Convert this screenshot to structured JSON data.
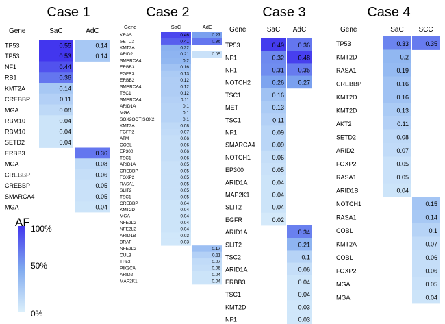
{
  "chart_data": {
    "type": "heatmap",
    "scale": {
      "label": "AF",
      "ticks": [
        "100%",
        "50%",
        "0%"
      ],
      "colors": {
        "high": "#4236ee",
        "mid": "#7fa9ef",
        "low": "#dbeffb"
      }
    },
    "panels": [
      {
        "title": "Case 1",
        "gene_header": "Gene",
        "columns": [
          "SaC",
          "AdC"
        ],
        "rows": [
          {
            "gene": "TP53",
            "values": [
              0.55,
              0.14
            ]
          },
          {
            "gene": "TP53",
            "values": [
              0.53,
              0.14
            ]
          },
          {
            "gene": "NF1",
            "values": [
              0.44,
              null
            ]
          },
          {
            "gene": "RB1",
            "values": [
              0.36,
              null
            ]
          },
          {
            "gene": "KMT2A",
            "values": [
              0.14,
              null
            ]
          },
          {
            "gene": "CREBBP",
            "values": [
              0.11,
              null
            ]
          },
          {
            "gene": "MGA",
            "values": [
              0.08,
              null
            ]
          },
          {
            "gene": "RBM10",
            "values": [
              0.04,
              null
            ]
          },
          {
            "gene": "RBM10",
            "values": [
              0.04,
              null
            ]
          },
          {
            "gene": "SETD2",
            "values": [
              0.04,
              null
            ]
          },
          {
            "gene": "ERBB3",
            "values": [
              null,
              0.36
            ]
          },
          {
            "gene": "MGA",
            "values": [
              null,
              0.08
            ]
          },
          {
            "gene": "CREBBP",
            "values": [
              null,
              0.06
            ]
          },
          {
            "gene": "CREBBP",
            "values": [
              null,
              0.05
            ]
          },
          {
            "gene": "SMARCA4",
            "values": [
              null,
              0.05
            ]
          },
          {
            "gene": "MGA",
            "values": [
              null,
              0.04
            ]
          }
        ]
      },
      {
        "title": "Case 2",
        "gene_header": "Gene",
        "columns": [
          "SaC",
          "AdC"
        ],
        "rows": [
          {
            "gene": "KRAS",
            "values": [
              0.46,
              0.27
            ]
          },
          {
            "gene": "SETD2",
            "values": [
              0.41,
              0.36
            ]
          },
          {
            "gene": "KMT2A",
            "values": [
              0.22,
              null
            ]
          },
          {
            "gene": "ARID2",
            "values": [
              0.21,
              0.05
            ]
          },
          {
            "gene": "SMARCA4",
            "values": [
              0.2,
              null
            ]
          },
          {
            "gene": "ERBB3",
            "values": [
              0.16,
              null
            ]
          },
          {
            "gene": "FGFR3",
            "values": [
              0.13,
              null
            ]
          },
          {
            "gene": "ERBB2",
            "values": [
              0.12,
              null
            ]
          },
          {
            "gene": "SMARCA4",
            "values": [
              0.12,
              null
            ]
          },
          {
            "gene": "TSC1",
            "values": [
              0.12,
              null
            ]
          },
          {
            "gene": "SMARCA4",
            "values": [
              0.11,
              null
            ]
          },
          {
            "gene": "ARID1A",
            "values": [
              0.1,
              null
            ]
          },
          {
            "gene": "MGA",
            "values": [
              0.1,
              null
            ]
          },
          {
            "gene": "SOX2OOT|SOX2",
            "values": [
              0.1,
              null
            ]
          },
          {
            "gene": "KMT2A",
            "values": [
              0.08,
              null
            ]
          },
          {
            "gene": "FGFR2",
            "values": [
              0.07,
              null
            ]
          },
          {
            "gene": "ATM",
            "values": [
              0.06,
              null
            ]
          },
          {
            "gene": "COBL",
            "values": [
              0.06,
              null
            ]
          },
          {
            "gene": "EP300",
            "values": [
              0.06,
              null
            ]
          },
          {
            "gene": "TSC1",
            "values": [
              0.06,
              null
            ]
          },
          {
            "gene": "ARID1A",
            "values": [
              0.05,
              null
            ]
          },
          {
            "gene": "CREBBP",
            "values": [
              0.05,
              null
            ]
          },
          {
            "gene": "FOXP2",
            "values": [
              0.05,
              null
            ]
          },
          {
            "gene": "RASA1",
            "values": [
              0.05,
              null
            ]
          },
          {
            "gene": "SLIT2",
            "values": [
              0.05,
              null
            ]
          },
          {
            "gene": "TSC1",
            "values": [
              0.05,
              null
            ]
          },
          {
            "gene": "CREBBP",
            "values": [
              0.04,
              null
            ]
          },
          {
            "gene": "KMT2D",
            "values": [
              0.04,
              null
            ]
          },
          {
            "gene": "MGA",
            "values": [
              0.04,
              null
            ]
          },
          {
            "gene": "NFE2L2",
            "values": [
              0.04,
              null
            ]
          },
          {
            "gene": "NFE2L2",
            "values": [
              0.04,
              null
            ]
          },
          {
            "gene": "ARID1B",
            "values": [
              0.03,
              null
            ]
          },
          {
            "gene": "BRAF",
            "values": [
              0.03,
              null
            ]
          },
          {
            "gene": "NFE2L2",
            "values": [
              null,
              0.17
            ]
          },
          {
            "gene": "CUL3",
            "values": [
              null,
              0.11
            ]
          },
          {
            "gene": "TP53",
            "values": [
              null,
              0.07
            ]
          },
          {
            "gene": "PIK3CA",
            "values": [
              null,
              0.06
            ]
          },
          {
            "gene": "ARID2",
            "values": [
              null,
              0.04
            ]
          },
          {
            "gene": "MAP2K1",
            "values": [
              null,
              0.04
            ]
          }
        ]
      },
      {
        "title": "Case 3",
        "gene_header": "Gene",
        "columns": [
          "SaC",
          "AdC"
        ],
        "rows": [
          {
            "gene": "TP53",
            "values": [
              0.49,
              0.36
            ]
          },
          {
            "gene": "NF1",
            "values": [
              0.32,
              0.48
            ]
          },
          {
            "gene": "NF1",
            "values": [
              0.31,
              0.35
            ]
          },
          {
            "gene": "NOTCH2",
            "values": [
              0.26,
              0.27
            ]
          },
          {
            "gene": "TSC1",
            "values": [
              0.16,
              null
            ]
          },
          {
            "gene": "MET",
            "values": [
              0.13,
              null
            ]
          },
          {
            "gene": "TSC1",
            "values": [
              0.11,
              null
            ]
          },
          {
            "gene": "NF1",
            "values": [
              0.09,
              null
            ]
          },
          {
            "gene": "SMARCA4",
            "values": [
              0.09,
              null
            ]
          },
          {
            "gene": "NOTCH1",
            "values": [
              0.06,
              null
            ]
          },
          {
            "gene": "EP300",
            "values": [
              0.05,
              null
            ]
          },
          {
            "gene": "ARID1A",
            "values": [
              0.04,
              null
            ]
          },
          {
            "gene": "MAP2K1",
            "values": [
              0.04,
              null
            ]
          },
          {
            "gene": "SLIT2",
            "values": [
              0.04,
              null
            ]
          },
          {
            "gene": "EGFR",
            "values": [
              0.02,
              null
            ]
          },
          {
            "gene": "ARID1A",
            "values": [
              null,
              0.34
            ]
          },
          {
            "gene": "SLIT2",
            "values": [
              null,
              0.21
            ]
          },
          {
            "gene": "TSC2",
            "values": [
              null,
              0.1
            ]
          },
          {
            "gene": "ARID1A",
            "values": [
              null,
              0.06
            ]
          },
          {
            "gene": "ERBB3",
            "values": [
              null,
              0.04
            ]
          },
          {
            "gene": "TSC1",
            "values": [
              null,
              0.04
            ]
          },
          {
            "gene": "KMT2D",
            "values": [
              null,
              0.03
            ]
          },
          {
            "gene": "NF1",
            "values": [
              null,
              0.03
            ]
          }
        ]
      },
      {
        "title": "Case 4",
        "gene_header": "Gene",
        "columns": [
          "SaC",
          "SCC"
        ],
        "rows": [
          {
            "gene": "TP53",
            "values": [
              0.33,
              0.35
            ]
          },
          {
            "gene": "KMT2D",
            "values": [
              0.2,
              null
            ]
          },
          {
            "gene": "RASA1",
            "values": [
              0.19,
              null
            ]
          },
          {
            "gene": "CREBBP",
            "values": [
              0.16,
              null
            ]
          },
          {
            "gene": "KMT2D",
            "values": [
              0.16,
              null
            ]
          },
          {
            "gene": "KMT2D",
            "values": [
              0.13,
              null
            ]
          },
          {
            "gene": "AKT2",
            "values": [
              0.11,
              null
            ]
          },
          {
            "gene": "SETD2",
            "values": [
              0.08,
              null
            ]
          },
          {
            "gene": "ARID2",
            "values": [
              0.07,
              null
            ]
          },
          {
            "gene": "FOXP2",
            "values": [
              0.05,
              null
            ]
          },
          {
            "gene": "RASA1",
            "values": [
              0.05,
              null
            ]
          },
          {
            "gene": "ARID1B",
            "values": [
              0.04,
              null
            ]
          },
          {
            "gene": "NOTCH1",
            "values": [
              null,
              0.15
            ]
          },
          {
            "gene": "RASA1",
            "values": [
              null,
              0.14
            ]
          },
          {
            "gene": "COBL",
            "values": [
              null,
              0.1
            ]
          },
          {
            "gene": "KMT2A",
            "values": [
              null,
              0.07
            ]
          },
          {
            "gene": "COBL",
            "values": [
              null,
              0.06
            ]
          },
          {
            "gene": "FOXP2",
            "values": [
              null,
              0.06
            ]
          },
          {
            "gene": "MGA",
            "values": [
              null,
              0.05
            ]
          },
          {
            "gene": "MGA",
            "values": [
              null,
              0.04
            ]
          }
        ]
      }
    ]
  }
}
